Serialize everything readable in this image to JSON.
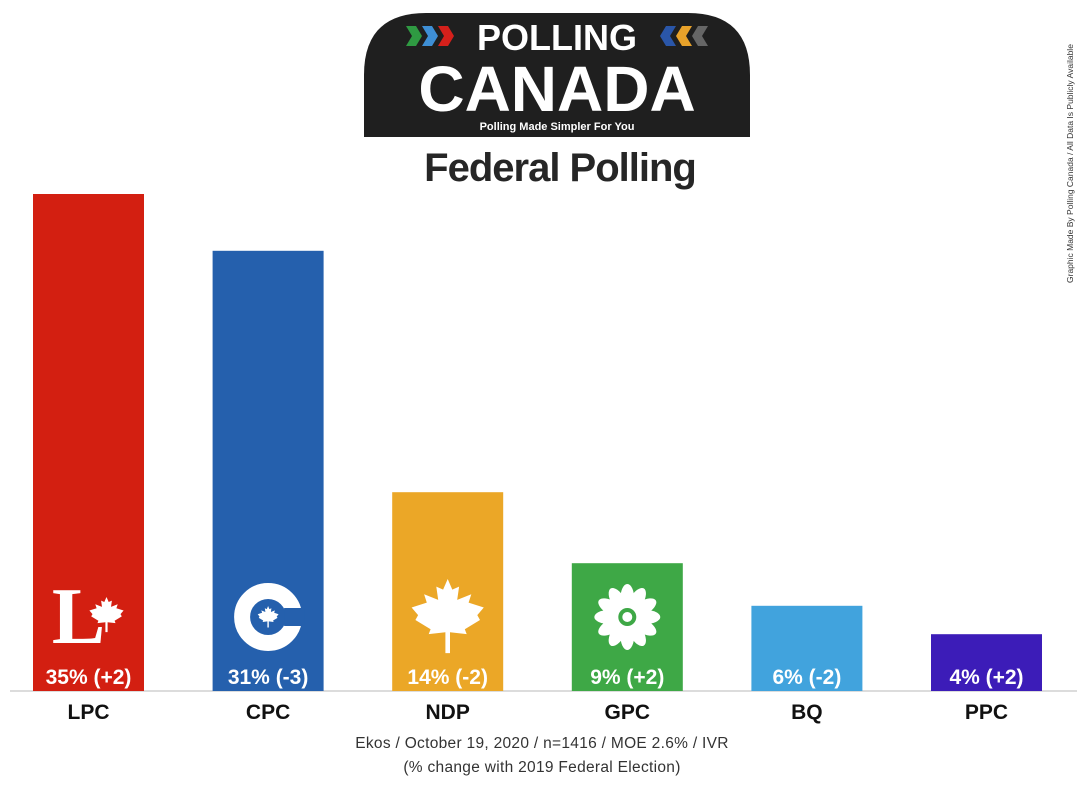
{
  "logo": {
    "line1": "POLLING",
    "line2": "CANADA",
    "tagline": "Polling Made Simpler For You"
  },
  "side_note": "Graphic Made By Polling Canada / All Data Is Publicly Available",
  "chart_data": {
    "type": "bar",
    "title": "Federal Polling",
    "categories": [
      "LPC",
      "CPC",
      "NDP",
      "GPC",
      "BQ",
      "PPC"
    ],
    "values": [
      35,
      31,
      14,
      9,
      6,
      4
    ],
    "changes": [
      "+2",
      "-3",
      "-2",
      "+2",
      "-2",
      "+2"
    ],
    "data_labels": [
      "35% (+2)",
      "31% (-3)",
      "14% (-2)",
      "9% (+2)",
      "6% (-2)",
      "4% (+2)"
    ],
    "colors": [
      "#d31f11",
      "#2560ad",
      "#eba727",
      "#3ea846",
      "#41a3dd",
      "#3c1cb8"
    ],
    "party_icons": [
      "liberal-logo-icon",
      "conservative-logo-icon",
      "maple-leaf-icon",
      "green-flower-icon",
      null,
      null
    ],
    "ylim": [
      0,
      35
    ],
    "grid": false,
    "legend": "none"
  },
  "footer": {
    "source": "Ekos / October 19, 2020 / n=1416 / MOE 2.6% / IVR",
    "note": "(% change with 2019 Federal Election)"
  }
}
